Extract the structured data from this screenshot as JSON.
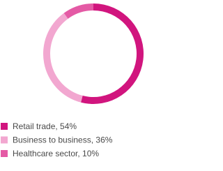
{
  "chart_data": {
    "type": "pie",
    "donut": true,
    "categories": [
      "Retail trade, 54%",
      "Business to business, 36%",
      "Healthcare sector, 10%"
    ],
    "values": [
      54,
      36,
      10
    ],
    "colors": [
      "#d1157e",
      "#f2a7d0",
      "#e45aa5"
    ]
  }
}
